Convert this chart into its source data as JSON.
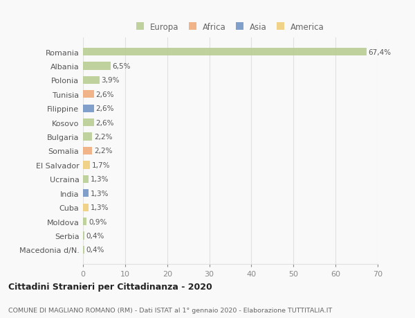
{
  "countries": [
    "Romania",
    "Albania",
    "Polonia",
    "Tunisia",
    "Filippine",
    "Kosovo",
    "Bulgaria",
    "Somalia",
    "El Salvador",
    "Ucraina",
    "India",
    "Cuba",
    "Moldova",
    "Serbia",
    "Macedonia d/N."
  ],
  "values": [
    67.4,
    6.5,
    3.9,
    2.6,
    2.6,
    2.6,
    2.2,
    2.2,
    1.7,
    1.3,
    1.3,
    1.3,
    0.9,
    0.4,
    0.4
  ],
  "labels": [
    "67,4%",
    "6,5%",
    "3,9%",
    "2,6%",
    "2,6%",
    "2,6%",
    "2,2%",
    "2,2%",
    "1,7%",
    "1,3%",
    "1,3%",
    "1,3%",
    "0,9%",
    "0,4%",
    "0,4%"
  ],
  "continents": [
    "Europa",
    "Europa",
    "Europa",
    "Africa",
    "Asia",
    "Europa",
    "Europa",
    "Africa",
    "America",
    "Europa",
    "Asia",
    "America",
    "Europa",
    "Europa",
    "Europa"
  ],
  "continent_colors": {
    "Europa": "#b5cc8e",
    "Africa": "#f0a875",
    "Asia": "#6b8fc2",
    "America": "#f0cc75"
  },
  "legend_order": [
    "Europa",
    "Africa",
    "Asia",
    "America"
  ],
  "title": "Cittadini Stranieri per Cittadinanza - 2020",
  "subtitle": "COMUNE DI MAGLIANO ROMANO (RM) - Dati ISTAT al 1° gennaio 2020 - Elaborazione TUTTITALIA.IT",
  "xlim": [
    0,
    70
  ],
  "xticks": [
    0,
    10,
    20,
    30,
    40,
    50,
    60,
    70
  ],
  "background_color": "#f9f9f9",
  "grid_color": "#e0e0e0"
}
